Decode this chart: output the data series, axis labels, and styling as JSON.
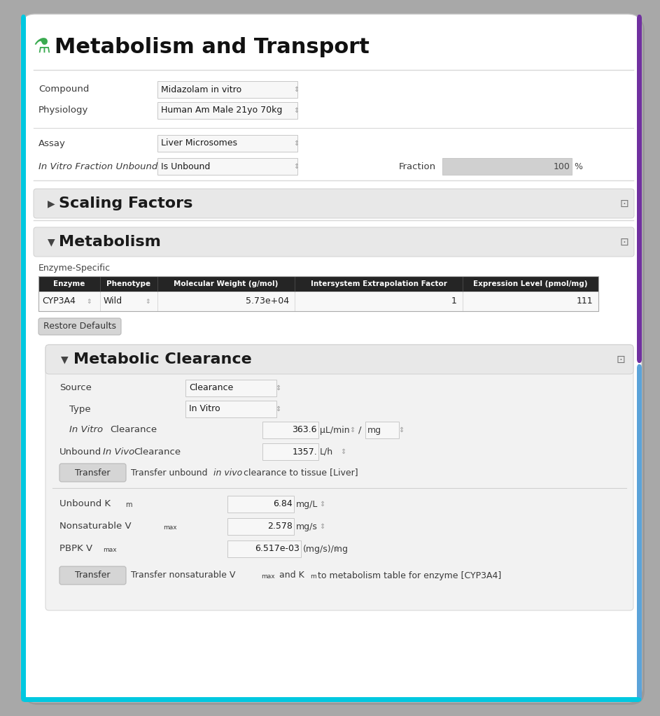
{
  "title": "Metabolism and Transport",
  "compound_label": "Compound",
  "compound_value": "Midazolam in vitro",
  "physiology_label": "Physiology",
  "physiology_value": "Human Am Male 21yo 70kg",
  "assay_label": "Assay",
  "assay_value": "Liver Microsomes",
  "invitro_fraction_label": "In Vitro Fraction Unbound",
  "invitro_fraction_value": "Is Unbound",
  "fraction_label": "Fraction",
  "fraction_value": "100",
  "fraction_unit": "%",
  "scaling_factors_label": "Scaling Factors",
  "metabolism_label": "Metabolism",
  "enzyme_specific_label": "Enzyme-Specific",
  "table_headers": [
    "Enzyme",
    "Phenotype",
    "Molecular Weight (g/mol)",
    "Intersystem Extrapolation Factor",
    "Expression Level (pmol/mg)"
  ],
  "table_row": [
    "CYP3A4",
    "Wild",
    "5.73e+04",
    "1",
    "111"
  ],
  "restore_defaults": "Restore Defaults",
  "metabolic_clearance_label": "Metabolic Clearance",
  "source_label": "Source",
  "source_value": "Clearance",
  "type_label": "Type",
  "type_value": "In Vitro",
  "invitro_clearance_label_normal": "In Vitro",
  "invitro_clearance_label_italic": "In Vitro",
  "invitro_clearance_value": "363.6",
  "invitro_clearance_unit": "μL/min",
  "invitro_clearance_unit2": "mg",
  "unbound_invivo_value": "1357.",
  "unbound_invivo_unit": "L/h",
  "unbound_km_value": "6.84",
  "unbound_km_unit": "mg/L",
  "nonsaturable_vmax_value": "2.578",
  "nonsaturable_vmax_unit": "mg/s",
  "pbpk_vmax_value": "6.517e-03",
  "pbpk_vmax_unit": "(mg/s)/mg",
  "card_color": "#ffffff",
  "section_bg": "#e8e8e8",
  "table_header_bg": "#252525",
  "input_bg": "#f7f7f7",
  "fraction_bg": "#d0d0d0",
  "button_bg": "#d5d5d5",
  "mc_inner_bg": "#f2f2f2",
  "label_color": "#3a3a3a",
  "value_color": "#1a1a1a",
  "section_title_color": "#1a1a1a",
  "icon_color": "#3aaa50",
  "spinner_color": "#999999",
  "border_color": "#c8c8c8",
  "sep_color": "#d8d8d8",
  "accent_left": "#00c8e0",
  "accent_right_purple": "#7030a0",
  "accent_right_blue": "#5ba3d9",
  "outer_bg": "#a8a8a8",
  "shadow_color": "#888888"
}
